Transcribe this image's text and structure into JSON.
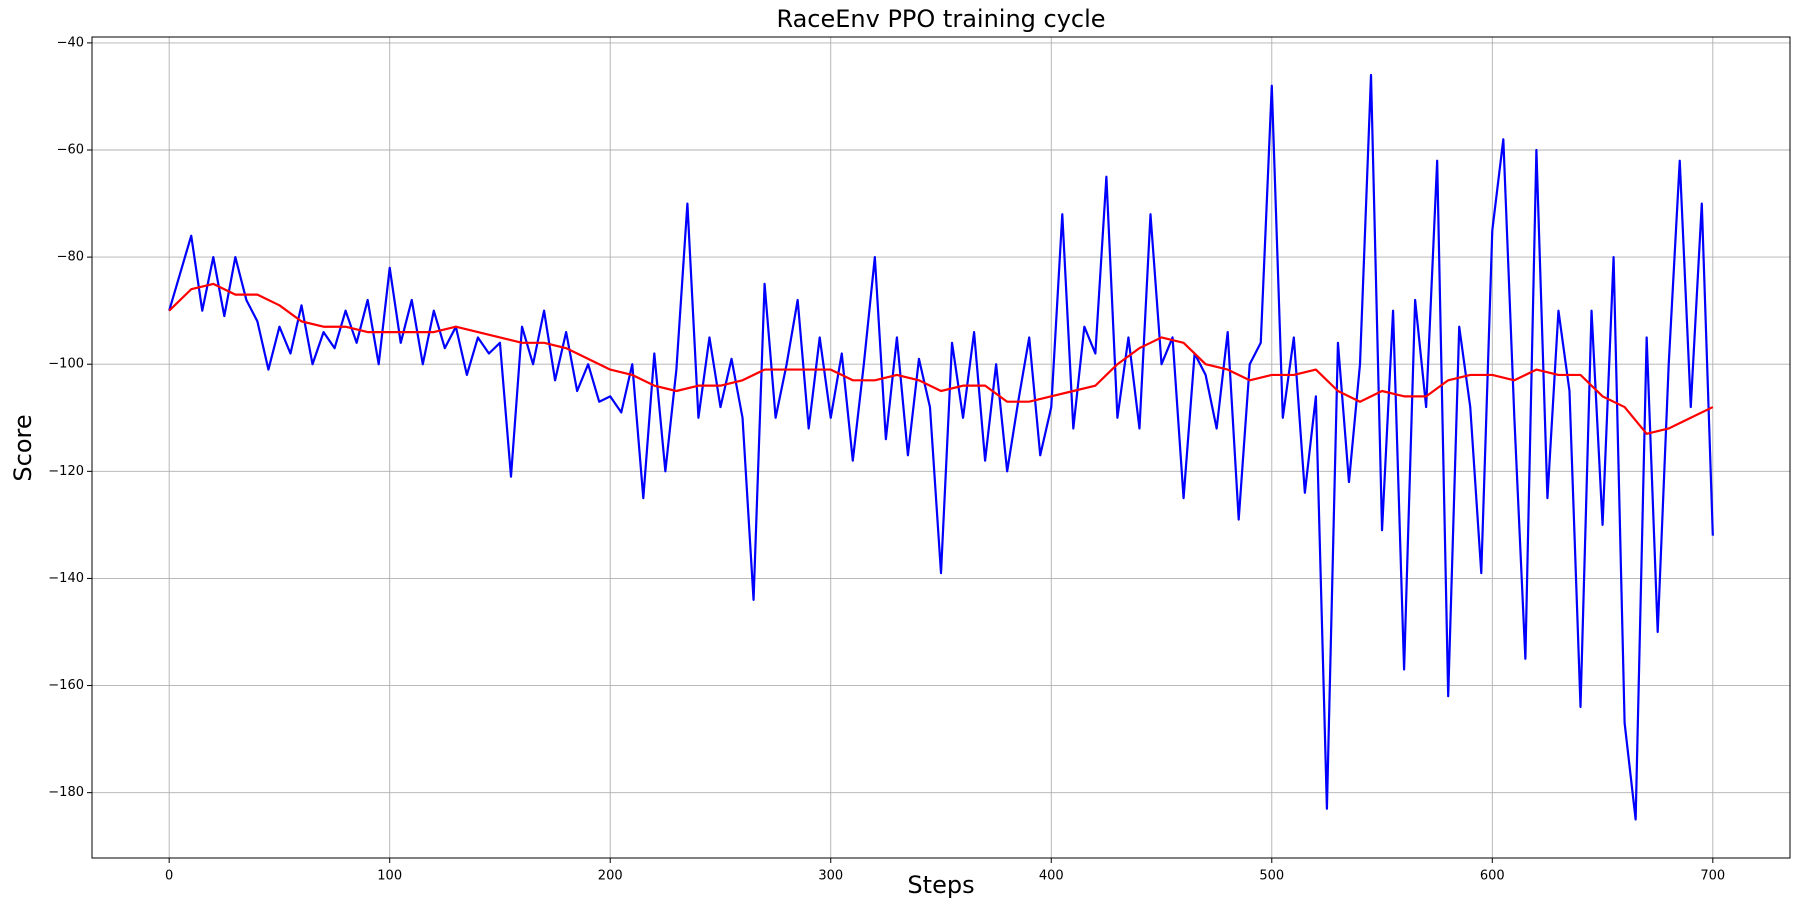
{
  "chart_data": {
    "type": "line",
    "title": "RaceEnv PPO training cycle",
    "x_label": "Steps",
    "y_label": "Score",
    "xlim": [
      -35,
      735
    ],
    "ylim": [
      -192.2,
      -38.9
    ],
    "xticks": [
      0,
      100,
      200,
      300,
      400,
      500,
      600,
      700
    ],
    "yticks": [
      {
        "value": -40,
        "label": "−40"
      },
      {
        "value": -60,
        "label": "−60"
      },
      {
        "value": -80,
        "label": "−80"
      },
      {
        "value": -100,
        "label": "−100"
      },
      {
        "value": -120,
        "label": "−120"
      },
      {
        "value": -140,
        "label": "−140"
      },
      {
        "value": -160,
        "label": "−160"
      },
      {
        "value": -180,
        "label": "−180"
      }
    ],
    "grid": true,
    "series": [
      {
        "color": "#0000ff",
        "x": [
          0,
          5,
          10,
          15,
          20,
          25,
          30,
          35,
          40,
          45,
          50,
          55,
          60,
          65,
          70,
          75,
          80,
          85,
          90,
          95,
          100,
          105,
          110,
          115,
          120,
          125,
          130,
          135,
          140,
          145,
          150,
          155,
          160,
          165,
          170,
          175,
          180,
          185,
          190,
          195,
          200,
          205,
          210,
          215,
          220,
          225,
          230,
          235,
          240,
          245,
          250,
          255,
          260,
          265,
          270,
          275,
          280,
          285,
          290,
          295,
          300,
          305,
          310,
          315,
          320,
          325,
          330,
          335,
          340,
          345,
          350,
          355,
          360,
          365,
          370,
          375,
          380,
          385,
          390,
          395,
          400,
          405,
          410,
          415,
          420,
          425,
          430,
          435,
          440,
          445,
          450,
          455,
          460,
          465,
          470,
          475,
          480,
          485,
          490,
          495,
          500,
          505,
          510,
          515,
          520,
          525,
          530,
          535,
          540,
          545,
          550,
          555,
          560,
          565,
          570,
          575,
          580,
          585,
          590,
          595,
          600,
          605,
          610,
          615,
          620,
          625,
          630,
          635,
          640,
          645,
          650,
          655,
          660,
          665,
          670,
          675,
          680,
          685,
          690,
          695,
          700
        ],
        "values": [
          -90,
          -83,
          -76,
          -90,
          -80,
          -91,
          -80,
          -88,
          -92,
          -101,
          -93,
          -98,
          -89,
          -100,
          -94,
          -97,
          -90,
          -96,
          -88,
          -100,
          -82,
          -96,
          -88,
          -100,
          -90,
          -97,
          -93,
          -102,
          -95,
          -98,
          -96,
          -121,
          -93,
          -100,
          -90,
          -103,
          -94,
          -105,
          -100,
          -107,
          -106,
          -109,
          -100,
          -125,
          -98,
          -120,
          -101,
          -70,
          -110,
          -95,
          -108,
          -99,
          -110,
          -144,
          -85,
          -110,
          -100,
          -88,
          -112,
          -95,
          -110,
          -98,
          -118,
          -100,
          -80,
          -114,
          -95,
          -117,
          -99,
          -108,
          -139,
          -96,
          -110,
          -94,
          -118,
          -100,
          -120,
          -107,
          -95,
          -117,
          -108,
          -72,
          -112,
          -93,
          -98,
          -65,
          -110,
          -95,
          -112,
          -72,
          -100,
          -95,
          -125,
          -98,
          -102,
          -112,
          -94,
          -129,
          -100,
          -96,
          -48,
          -110,
          -95,
          -124,
          -106,
          -183,
          -96,
          -122,
          -100,
          -46,
          -131,
          -90,
          -157,
          -88,
          -108,
          -62,
          -162,
          -93,
          -108,
          -139,
          -75,
          -58,
          -110,
          -155,
          -60,
          -125,
          -90,
          -105,
          -164,
          -90,
          -130,
          -80,
          -167,
          -185,
          -95,
          -150,
          -100,
          -62,
          -108,
          -70,
          -132
        ]
      },
      {
        "color": "#ff0000",
        "x": [
          0,
          10,
          20,
          30,
          40,
          50,
          60,
          70,
          80,
          90,
          100,
          110,
          120,
          130,
          140,
          150,
          160,
          170,
          180,
          190,
          200,
          210,
          220,
          230,
          240,
          250,
          260,
          270,
          280,
          290,
          300,
          310,
          320,
          330,
          340,
          350,
          360,
          370,
          380,
          390,
          400,
          410,
          420,
          430,
          440,
          450,
          460,
          470,
          480,
          490,
          500,
          510,
          520,
          530,
          540,
          550,
          560,
          570,
          580,
          590,
          600,
          610,
          620,
          630,
          640,
          650,
          660,
          670,
          680,
          690,
          700
        ],
        "values": [
          -90,
          -86,
          -85,
          -87,
          -87,
          -89,
          -92,
          -93,
          -93,
          -94,
          -94,
          -94,
          -94,
          -93,
          -94,
          -95,
          -96,
          -96,
          -97,
          -99,
          -101,
          -102,
          -104,
          -105,
          -104,
          -104,
          -103,
          -101,
          -101,
          -101,
          -101,
          -103,
          -103,
          -102,
          -103,
          -105,
          -104,
          -104,
          -107,
          -107,
          -106,
          -105,
          -104,
          -100,
          -97,
          -95,
          -96,
          -100,
          -101,
          -103,
          -102,
          -102,
          -101,
          -105,
          -107,
          -105,
          -106,
          -106,
          -103,
          -102,
          -102,
          -103,
          -101,
          -102,
          -102,
          -106,
          -108,
          -113,
          -112,
          -110,
          -108
        ]
      }
    ]
  }
}
